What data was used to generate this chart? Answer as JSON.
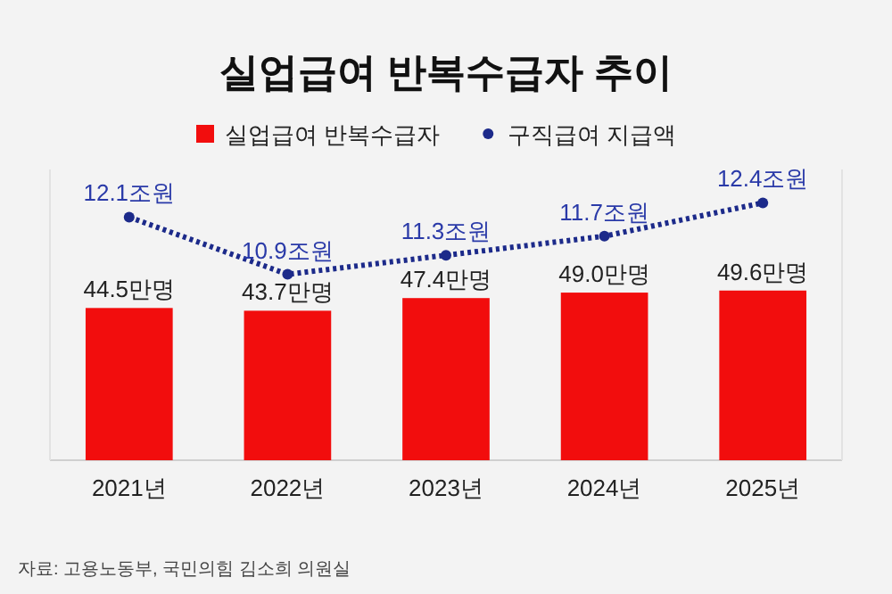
{
  "chart_data": {
    "type": "bar",
    "title": "실업급여 반복수급자 추이",
    "categories": [
      "2021년",
      "2022년",
      "2023년",
      "2024년",
      "2025년"
    ],
    "series": [
      {
        "name": "실업급여 반복수급자",
        "color": "#f20d0d",
        "values": [
          44.5,
          43.7,
          47.4,
          49.0,
          49.6
        ],
        "value_labels": [
          "44.5만명",
          "43.7만명",
          "47.4만명",
          "49.0만명",
          "49.6만명"
        ]
      },
      {
        "name": "구직급여 지급액",
        "type": "line",
        "axis": "y2",
        "color": "#1c2a8a",
        "values": [
          12.1,
          10.9,
          11.3,
          11.7,
          12.4
        ],
        "value_labels": [
          "12.1조원",
          "10.9조원",
          "11.3조원",
          "11.7조원",
          "12.4조원"
        ]
      }
    ],
    "ylim": [
      0,
      85
    ],
    "y2lim": [
      7,
      13.1
    ],
    "legend": "top",
    "marker": "circle",
    "line_style": "dotted",
    "annotations": [
      "자료: 고용노동부, 국민의힘 김소희 의원실"
    ]
  }
}
